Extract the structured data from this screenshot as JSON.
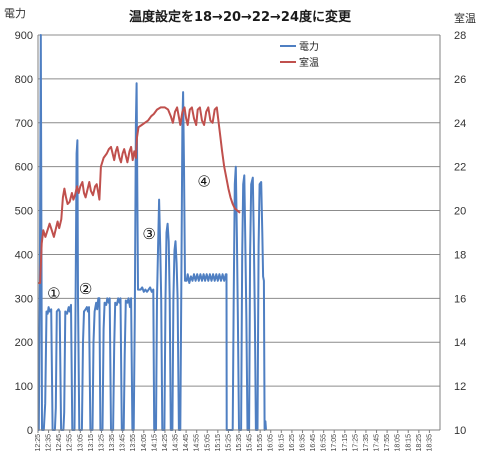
{
  "chart_data": {
    "type": "line",
    "title": "温度設定を18→20→22→24度に変更",
    "ylabel": "電力",
    "y2label": "室温",
    "ylim": [
      0,
      900
    ],
    "y2lim": [
      10,
      28
    ],
    "yticks": [
      "0",
      "100",
      "200",
      "300",
      "400",
      "500",
      "600",
      "700",
      "800",
      "900"
    ],
    "y2ticks": [
      "10",
      "12",
      "14",
      "16",
      "18",
      "20",
      "22",
      "24",
      "26",
      "28"
    ],
    "grid": true,
    "legend_position": "top-center",
    "x": [
      "12:25",
      "12:35",
      "12:45",
      "12:55",
      "13:05",
      "13:15",
      "13:25",
      "13:35",
      "13:45",
      "13:55",
      "14:05",
      "14:15",
      "14:25",
      "14:35",
      "14:45",
      "14:55",
      "15:05",
      "15:15",
      "15:25",
      "15:35",
      "15:45",
      "15:55",
      "16:05",
      "16:15",
      "16:25",
      "16:35",
      "16:45",
      "16:55",
      "17:05",
      "17:15",
      "17:25",
      "17:35",
      "17:45",
      "17:55",
      "18:05",
      "18:15",
      "18:25",
      "18:35"
    ],
    "series": [
      {
        "name": "電力",
        "color": "#4f7fc2",
        "axis": "left",
        "points": [
          [
            0,
            0
          ],
          [
            0.08,
            0
          ],
          [
            0.18,
            360
          ],
          [
            0.26,
            900
          ],
          [
            0.38,
            0
          ],
          [
            0.55,
            0
          ],
          [
            0.68,
            60
          ],
          [
            0.8,
            270
          ],
          [
            0.92,
            265
          ],
          [
            1.0,
            280
          ],
          [
            1.1,
            270
          ],
          [
            1.25,
            275
          ],
          [
            1.38,
            0
          ],
          [
            1.6,
            0
          ],
          [
            1.68,
            50
          ],
          [
            1.78,
            270
          ],
          [
            1.95,
            275
          ],
          [
            2.05,
            270
          ],
          [
            2.18,
            0
          ],
          [
            2.4,
            0
          ],
          [
            2.48,
            40
          ],
          [
            2.58,
            270
          ],
          [
            2.75,
            265
          ],
          [
            2.9,
            280
          ],
          [
            3.0,
            270
          ],
          [
            3.12,
            285
          ],
          [
            3.24,
            0
          ],
          [
            3.45,
            0
          ],
          [
            3.55,
            300
          ],
          [
            3.65,
            630
          ],
          [
            3.72,
            660
          ],
          [
            3.78,
            300
          ],
          [
            3.9,
            0
          ],
          [
            4.15,
            0
          ],
          [
            4.25,
            200
          ],
          [
            4.35,
            270
          ],
          [
            4.5,
            275
          ],
          [
            4.62,
            280
          ],
          [
            4.72,
            270
          ],
          [
            4.82,
            280
          ],
          [
            4.95,
            0
          ],
          [
            5.15,
            0
          ],
          [
            5.25,
            200
          ],
          [
            5.35,
            270
          ],
          [
            5.5,
            290
          ],
          [
            5.6,
            275
          ],
          [
            5.7,
            300
          ],
          [
            5.8,
            300
          ],
          [
            5.9,
            0
          ],
          [
            6.1,
            0
          ],
          [
            6.2,
            230
          ],
          [
            6.3,
            290
          ],
          [
            6.45,
            285
          ],
          [
            6.55,
            300
          ],
          [
            6.68,
            290
          ],
          [
            6.78,
            300
          ],
          [
            6.9,
            0
          ],
          [
            7.1,
            0
          ],
          [
            7.2,
            190
          ],
          [
            7.3,
            290
          ],
          [
            7.45,
            285
          ],
          [
            7.58,
            300
          ],
          [
            7.7,
            290
          ],
          [
            7.8,
            300
          ],
          [
            7.92,
            0
          ],
          [
            8.1,
            0
          ],
          [
            8.2,
            170
          ],
          [
            8.3,
            295
          ],
          [
            8.45,
            290
          ],
          [
            8.55,
            300
          ],
          [
            8.7,
            280
          ],
          [
            8.8,
            300
          ],
          [
            8.92,
            0
          ],
          [
            9.05,
            0
          ],
          [
            9.15,
            260
          ],
          [
            9.25,
            700
          ],
          [
            9.32,
            790
          ],
          [
            9.4,
            520
          ],
          [
            9.45,
            320
          ],
          [
            9.7,
            320
          ],
          [
            9.85,
            325
          ],
          [
            10.0,
            315
          ],
          [
            10.15,
            320
          ],
          [
            10.3,
            315
          ],
          [
            10.45,
            320
          ],
          [
            10.6,
            325
          ],
          [
            10.75,
            315
          ],
          [
            10.9,
            320
          ],
          [
            10.98,
            0
          ],
          [
            11.15,
            0
          ],
          [
            11.25,
            300
          ],
          [
            11.35,
            420
          ],
          [
            11.45,
            525
          ],
          [
            11.55,
            420
          ],
          [
            11.65,
            300
          ],
          [
            11.75,
            0
          ],
          [
            11.95,
            0
          ],
          [
            12.05,
            300
          ],
          [
            12.15,
            450
          ],
          [
            12.25,
            470
          ],
          [
            12.35,
            430
          ],
          [
            12.45,
            300
          ],
          [
            12.55,
            0
          ],
          [
            12.7,
            0
          ],
          [
            12.8,
            300
          ],
          [
            12.9,
            410
          ],
          [
            13.0,
            430
          ],
          [
            13.1,
            380
          ],
          [
            13.2,
            300
          ],
          [
            13.32,
            0
          ],
          [
            13.45,
            0
          ],
          [
            13.55,
            320
          ],
          [
            13.65,
            700
          ],
          [
            13.72,
            770
          ],
          [
            13.8,
            600
          ],
          [
            13.9,
            340
          ],
          [
            14.05,
            340
          ],
          [
            14.15,
            355
          ],
          [
            14.3,
            335
          ],
          [
            14.45,
            350
          ],
          [
            14.6,
            340
          ],
          [
            14.75,
            355
          ],
          [
            14.9,
            340
          ],
          [
            15.05,
            355
          ],
          [
            15.2,
            340
          ],
          [
            15.35,
            355
          ],
          [
            15.5,
            340
          ],
          [
            15.65,
            355
          ],
          [
            15.8,
            340
          ],
          [
            15.95,
            355
          ],
          [
            16.1,
            340
          ],
          [
            16.25,
            355
          ],
          [
            16.4,
            340
          ],
          [
            16.55,
            355
          ],
          [
            16.7,
            340
          ],
          [
            16.85,
            355
          ],
          [
            17.0,
            340
          ],
          [
            17.15,
            355
          ],
          [
            17.3,
            340
          ],
          [
            17.45,
            355
          ],
          [
            17.6,
            340
          ],
          [
            17.75,
            355
          ],
          [
            17.82,
            355
          ],
          [
            17.84,
            0
          ],
          [
            18.4,
            0
          ],
          [
            18.5,
            300
          ],
          [
            18.6,
            560
          ],
          [
            18.7,
            600
          ],
          [
            18.8,
            440
          ],
          [
            18.9,
            250
          ],
          [
            19.0,
            0
          ],
          [
            19.2,
            0
          ],
          [
            19.3,
            400
          ],
          [
            19.4,
            560
          ],
          [
            19.5,
            580
          ],
          [
            19.6,
            430
          ],
          [
            19.7,
            250
          ],
          [
            19.8,
            0
          ],
          [
            19.95,
            0
          ],
          [
            20.05,
            400
          ],
          [
            20.15,
            560
          ],
          [
            20.3,
            575
          ],
          [
            20.4,
            440
          ],
          [
            20.5,
            250
          ],
          [
            20.6,
            0
          ],
          [
            20.75,
            0
          ],
          [
            20.85,
            420
          ],
          [
            20.95,
            560
          ],
          [
            21.1,
            565
          ],
          [
            21.2,
            450
          ],
          [
            21.28,
            350
          ],
          [
            21.35,
            340
          ],
          [
            21.42,
            0
          ],
          [
            21.5,
            20
          ],
          [
            21.55,
            0
          ]
        ]
      },
      {
        "name": "室温",
        "color": "#c0504d",
        "axis": "right",
        "points": [
          [
            0,
            16.7
          ],
          [
            0.2,
            16.7
          ],
          [
            0.35,
            18.5
          ],
          [
            0.5,
            19.1
          ],
          [
            0.7,
            18.8
          ],
          [
            0.9,
            19.1
          ],
          [
            1.1,
            19.4
          ],
          [
            1.3,
            19.1
          ],
          [
            1.5,
            18.8
          ],
          [
            1.7,
            19.2
          ],
          [
            1.85,
            19.5
          ],
          [
            2.0,
            19.2
          ],
          [
            2.2,
            19.6
          ],
          [
            2.35,
            20.6
          ],
          [
            2.5,
            21.0
          ],
          [
            2.65,
            20.6
          ],
          [
            2.8,
            20.3
          ],
          [
            3.0,
            20.4
          ],
          [
            3.2,
            20.8
          ],
          [
            3.35,
            20.5
          ],
          [
            3.5,
            20.7
          ],
          [
            3.7,
            21.1
          ],
          [
            3.85,
            20.8
          ],
          [
            4.0,
            21.1
          ],
          [
            4.2,
            21.3
          ],
          [
            4.35,
            20.8
          ],
          [
            4.5,
            20.6
          ],
          [
            4.7,
            21.0
          ],
          [
            4.85,
            21.3
          ],
          [
            5.0,
            20.9
          ],
          [
            5.2,
            20.7
          ],
          [
            5.4,
            21.1
          ],
          [
            5.55,
            21.2
          ],
          [
            5.7,
            20.8
          ],
          [
            5.8,
            20.5
          ],
          [
            5.95,
            22.0
          ],
          [
            6.2,
            22.4
          ],
          [
            6.5,
            22.6
          ],
          [
            6.7,
            22.8
          ],
          [
            6.9,
            22.9
          ],
          [
            7.05,
            22.6
          ],
          [
            7.2,
            22.3
          ],
          [
            7.35,
            22.7
          ],
          [
            7.5,
            22.9
          ],
          [
            7.7,
            22.4
          ],
          [
            7.85,
            22.2
          ],
          [
            8.0,
            22.6
          ],
          [
            8.15,
            22.8
          ],
          [
            8.3,
            22.5
          ],
          [
            8.45,
            22.2
          ],
          [
            8.65,
            22.7
          ],
          [
            8.8,
            22.9
          ],
          [
            8.95,
            22.3
          ],
          [
            9.1,
            22.7
          ],
          [
            9.25,
            22.4
          ],
          [
            9.35,
            23.3
          ],
          [
            9.5,
            23.8
          ],
          [
            9.8,
            23.9
          ],
          [
            10.1,
            24.0
          ],
          [
            10.4,
            24.1
          ],
          [
            10.7,
            24.3
          ],
          [
            10.95,
            24.4
          ],
          [
            11.25,
            24.6
          ],
          [
            11.6,
            24.7
          ],
          [
            12.0,
            24.7
          ],
          [
            12.3,
            24.6
          ],
          [
            12.55,
            24.3
          ],
          [
            12.75,
            24.0
          ],
          [
            12.95,
            24.5
          ],
          [
            13.15,
            24.7
          ],
          [
            13.3,
            24.3
          ],
          [
            13.45,
            23.9
          ],
          [
            13.65,
            24.5
          ],
          [
            13.85,
            24.7
          ],
          [
            14.0,
            24.2
          ],
          [
            14.15,
            23.9
          ],
          [
            14.35,
            24.6
          ],
          [
            14.55,
            24.7
          ],
          [
            14.75,
            24.2
          ],
          [
            14.95,
            23.9
          ],
          [
            15.1,
            24.6
          ],
          [
            15.3,
            24.7
          ],
          [
            15.5,
            24.1
          ],
          [
            15.7,
            23.9
          ],
          [
            15.9,
            24.5
          ],
          [
            16.1,
            24.7
          ],
          [
            16.3,
            24.1
          ],
          [
            16.5,
            24.0
          ],
          [
            16.7,
            24.6
          ],
          [
            16.9,
            24.7
          ],
          [
            17.05,
            24.1
          ],
          [
            17.2,
            23.5
          ],
          [
            17.4,
            22.7
          ],
          [
            17.6,
            22.0
          ],
          [
            17.8,
            21.5
          ],
          [
            18.0,
            21.0
          ],
          [
            18.2,
            20.6
          ],
          [
            18.4,
            20.3
          ],
          [
            18.6,
            20.1
          ],
          [
            18.85,
            20.0
          ],
          [
            19.1,
            19.9
          ]
        ]
      }
    ],
    "annotations": [
      {
        "text": "①",
        "x": 1.5,
        "y": 300
      },
      {
        "text": "②",
        "x": 4.5,
        "y": 310
      },
      {
        "text": "③",
        "x": 10.5,
        "y": 435
      },
      {
        "text": "④",
        "x": 15.7,
        "y": 555
      }
    ]
  }
}
